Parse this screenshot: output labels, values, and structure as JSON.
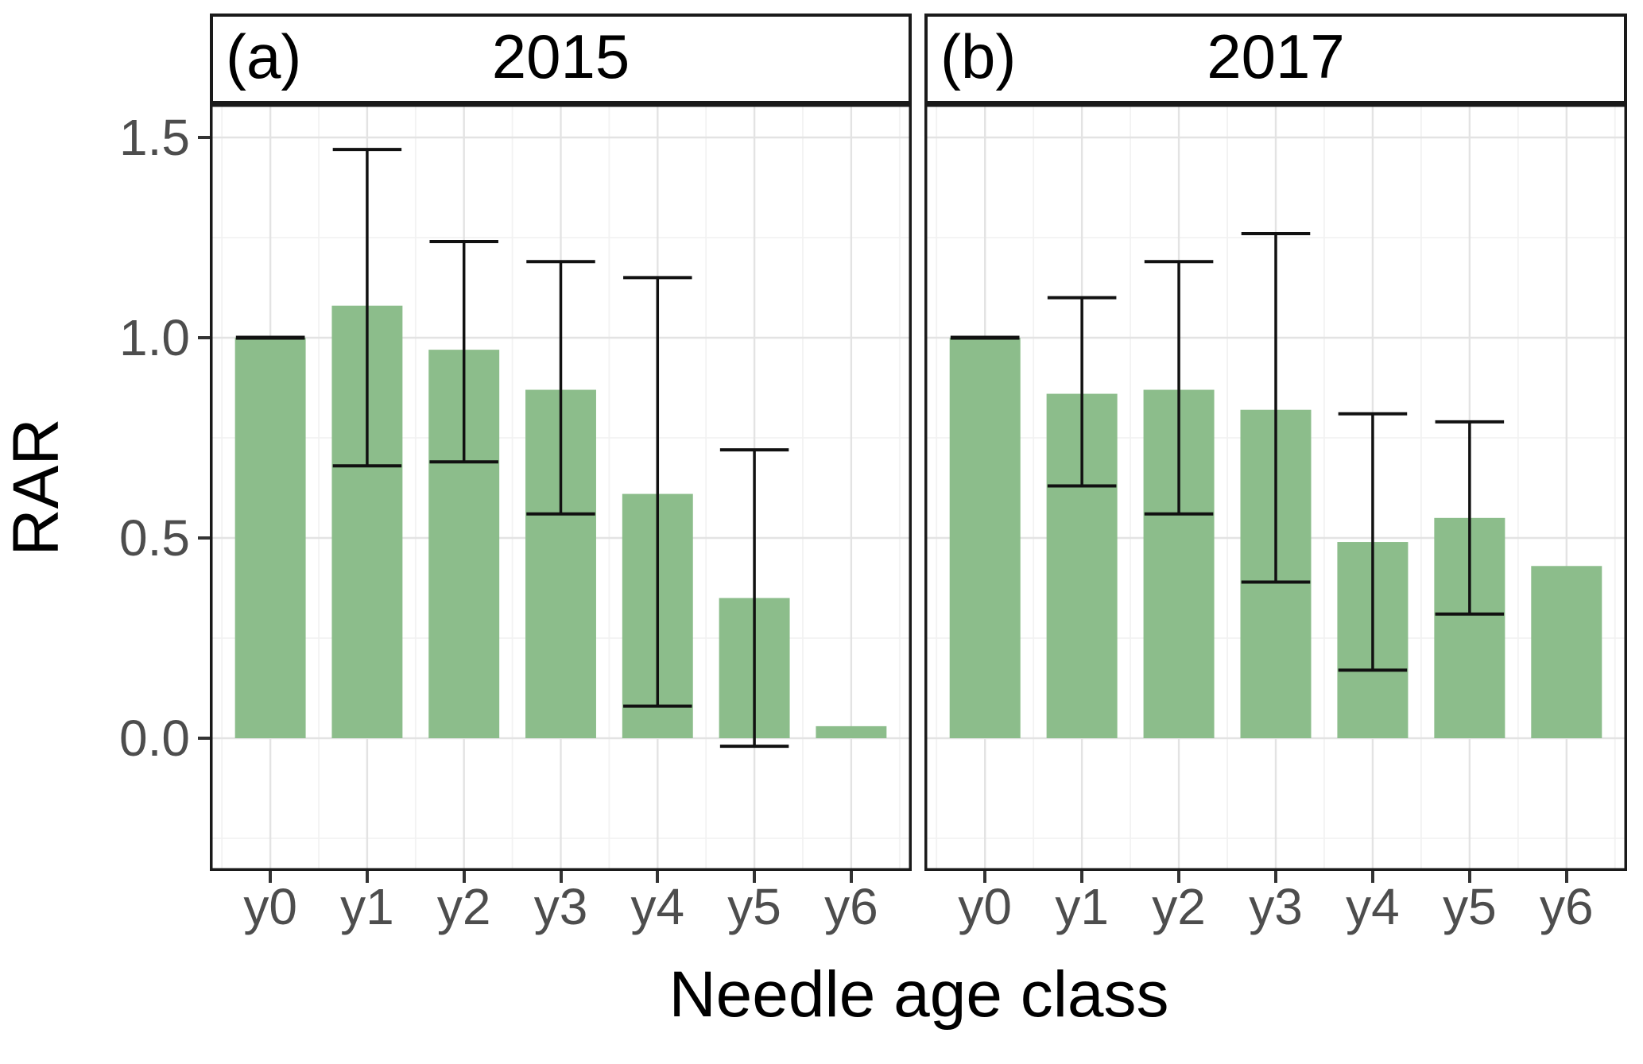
{
  "chart_data": {
    "type": "bar",
    "title": "",
    "categories": [
      "y0",
      "y1",
      "y2",
      "y3",
      "y4",
      "y5",
      "y6"
    ],
    "xlabel": "Needle age class",
    "ylabel": "RAR",
    "y_tick_values": [
      1.5,
      1.0,
      0.5,
      0.0
    ],
    "y_tick_labels": [
      "1.5",
      "1.0",
      "0.5",
      "0.0"
    ],
    "ylim": [
      -0.33,
      1.58
    ],
    "grid": "major and minor gridlines, light gray on white",
    "legend": "none",
    "error_bars": "vertical range with flat caps; y0 shows flat reference line at 1.0; y6 has none",
    "panels": [
      {
        "tag": "(a)",
        "title": "2015",
        "values": [
          1.0,
          1.08,
          0.97,
          0.87,
          0.61,
          0.35,
          0.03
        ],
        "error_low": [
          1.0,
          0.68,
          0.69,
          0.56,
          0.08,
          -0.02,
          null
        ],
        "error_high": [
          1.0,
          1.47,
          1.24,
          1.19,
          1.15,
          0.72,
          null
        ]
      },
      {
        "tag": "(b)",
        "title": "2017",
        "values": [
          1.0,
          0.86,
          0.87,
          0.82,
          0.49,
          0.55,
          0.43
        ],
        "error_low": [
          1.0,
          0.63,
          0.56,
          0.39,
          0.17,
          0.31,
          null
        ],
        "error_high": [
          1.0,
          1.1,
          1.19,
          1.26,
          0.81,
          0.79,
          null
        ]
      }
    ]
  },
  "colors": {
    "bar_fill": "#8cbd8b",
    "error_bar": "#111111",
    "axis_text": "#4d4d4d",
    "title_text": "#000000",
    "grid_major": "#e3e3e3",
    "grid_minor": "#f2f2f2",
    "panel_border": "#1a1a1a",
    "tick_mark": "#333333",
    "background": "#ffffff"
  }
}
